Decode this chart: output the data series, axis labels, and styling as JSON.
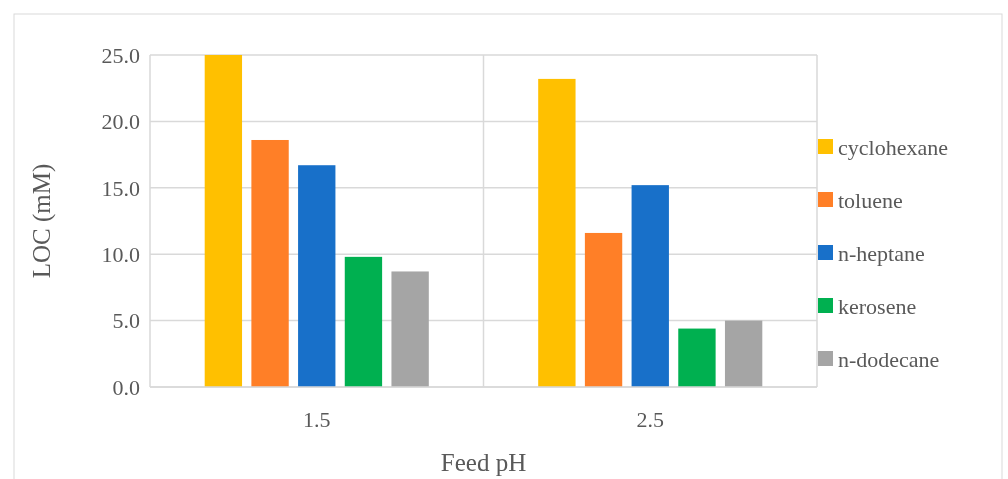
{
  "chart_data": {
    "type": "bar",
    "xlabel": "Feed pH",
    "ylabel": "LOC (mM)",
    "categories": [
      "1.5",
      "2.5"
    ],
    "series": [
      {
        "name": "cyclohexane",
        "color": "#ffc000",
        "values": [
          25.0,
          23.2
        ]
      },
      {
        "name": "toluene",
        "color": "#ff7f27",
        "values": [
          18.6,
          11.6
        ]
      },
      {
        "name": "n-heptane",
        "color": "#1870c9",
        "values": [
          16.7,
          15.2
        ]
      },
      {
        "name": "kerosene",
        "color": "#00b050",
        "values": [
          9.8,
          4.4
        ]
      },
      {
        "name": "n-dodecane",
        "color": "#a5a5a5",
        "values": [
          8.7,
          5.0
        ]
      }
    ],
    "ylim": [
      0,
      25
    ],
    "yticks": [
      {
        "value": 0,
        "label": "0.0"
      },
      {
        "value": 5,
        "label": "5.0"
      },
      {
        "value": 10,
        "label": "10.0"
      },
      {
        "value": 15,
        "label": "15.0"
      },
      {
        "value": 20,
        "label": "20.0"
      },
      {
        "value": 25,
        "label": "25.0"
      }
    ],
    "grid": true,
    "legend": "right"
  }
}
